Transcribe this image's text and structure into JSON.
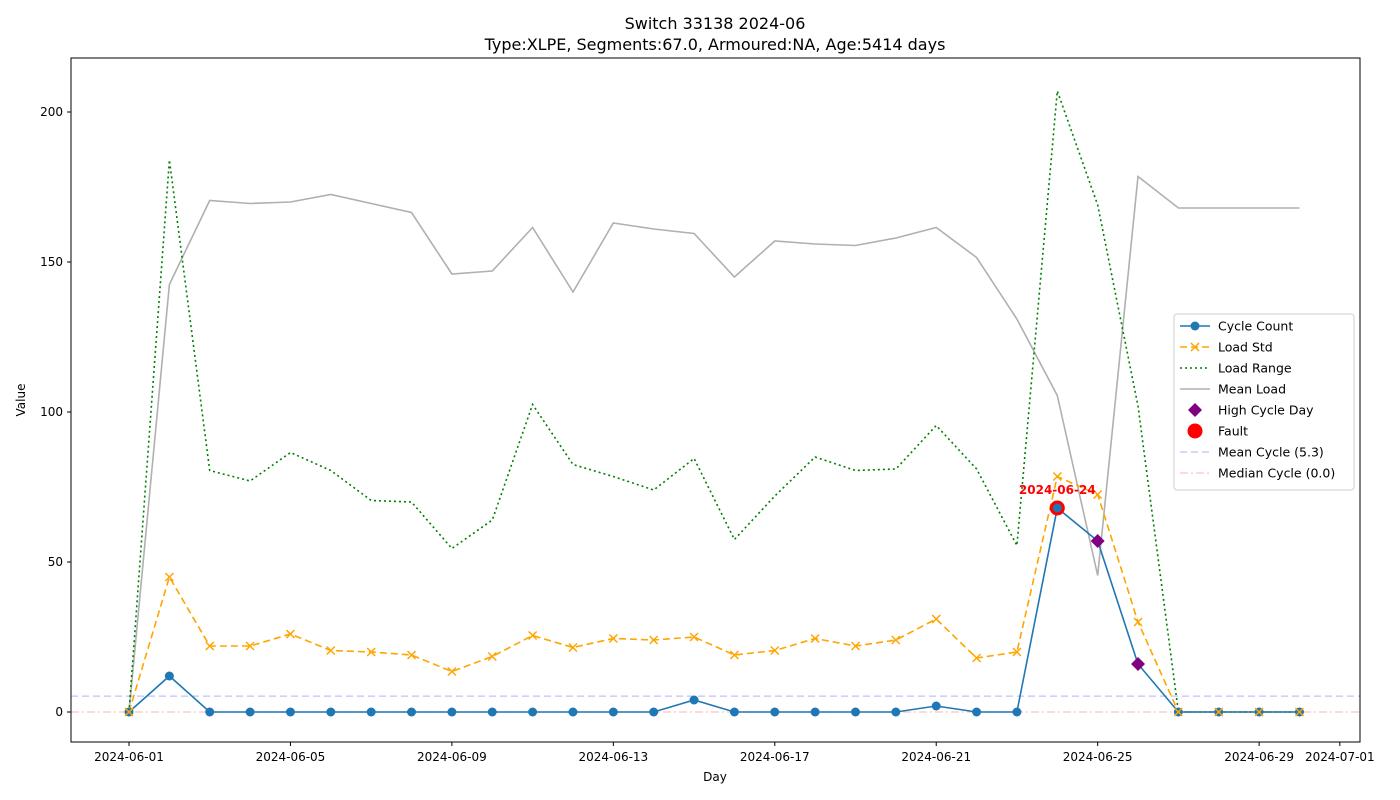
{
  "chart_data": {
    "type": "line",
    "title": "Switch 33138 2024-06",
    "subtitle": "Type:XLPE, Segments:67.0, Armoured:NA, Age:5414 days",
    "xlabel": "Day",
    "ylabel": "Value",
    "x_ticks": [
      "2024-06-01",
      "2024-06-05",
      "2024-06-09",
      "2024-06-13",
      "2024-06-17",
      "2024-06-21",
      "2024-06-25",
      "2024-06-29",
      "2024-07-01"
    ],
    "y_ticks": [
      0,
      50,
      100,
      150,
      200
    ],
    "ylim": [
      -10,
      218
    ],
    "xlim": [
      "2024-05-30T13:30",
      "2024-07-01T12:00"
    ],
    "x": [
      "2024-06-01",
      "2024-06-02",
      "2024-06-03",
      "2024-06-04",
      "2024-06-05",
      "2024-06-06",
      "2024-06-07",
      "2024-06-08",
      "2024-06-09",
      "2024-06-10",
      "2024-06-11",
      "2024-06-12",
      "2024-06-13",
      "2024-06-14",
      "2024-06-15",
      "2024-06-16",
      "2024-06-17",
      "2024-06-18",
      "2024-06-19",
      "2024-06-20",
      "2024-06-21",
      "2024-06-22",
      "2024-06-23",
      "2024-06-24",
      "2024-06-25",
      "2024-06-26",
      "2024-06-27",
      "2024-06-28",
      "2024-06-29",
      "2024-06-30"
    ],
    "series": [
      {
        "name": "Cycle Count",
        "color": "#1f77b4",
        "style": "solid",
        "marker": "circle",
        "values": [
          0,
          12,
          0,
          0,
          0,
          0,
          0,
          0,
          0,
          0,
          0,
          0,
          0,
          0,
          4,
          0,
          0,
          0,
          0,
          0,
          2,
          0,
          0,
          68,
          57,
          16,
          0,
          0,
          0,
          0
        ]
      },
      {
        "name": "Load Std",
        "color": "#ffa500",
        "style": "dashed",
        "marker": "x",
        "values": [
          0,
          45,
          22,
          22,
          26,
          20.5,
          20,
          19,
          13.5,
          18.5,
          25.5,
          21.5,
          24.5,
          24,
          25,
          19,
          20.5,
          24.5,
          22,
          24,
          31,
          18,
          20,
          78.5,
          72.5,
          30,
          0,
          0,
          0,
          0
        ]
      },
      {
        "name": "Load Range",
        "color": "#008000",
        "style": "dotted",
        "marker": "none",
        "values": [
          0,
          184,
          80.5,
          77,
          86.5,
          80.5,
          70.5,
          70,
          54.5,
          64,
          102.5,
          82.5,
          78.5,
          74,
          84.5,
          57.5,
          72,
          85,
          80.5,
          81,
          95.5,
          81,
          55.5,
          207,
          169,
          102,
          0,
          0,
          0,
          0
        ]
      },
      {
        "name": "Mean Load",
        "color": "#b0b0b0",
        "style": "solid",
        "marker": "none",
        "values": [
          0,
          142.5,
          170.5,
          169.5,
          170,
          172.5,
          169.5,
          166.5,
          146,
          147,
          161.5,
          140,
          163,
          161,
          159.5,
          145,
          157,
          156,
          155.5,
          158,
          161.5,
          151.5,
          131,
          105.5,
          45.5,
          178.5,
          168,
          168,
          168,
          168
        ]
      }
    ],
    "high_cycle_days": [
      {
        "x": "2024-06-25",
        "y": 57
      },
      {
        "x": "2024-06-26",
        "y": 16
      }
    ],
    "faults": [
      {
        "x": "2024-06-24",
        "y": 68,
        "label": "2024-06-24"
      }
    ],
    "reference_lines": [
      {
        "name": "Mean Cycle (5.3)",
        "y": 5.3,
        "color": "#9999ff",
        "style": "dashed"
      },
      {
        "name": "Median Cycle (0.0)",
        "y": 0,
        "color": "#ff9999",
        "style": "dashdot"
      }
    ],
    "legend": {
      "placement": "center-right",
      "entries": [
        {
          "label": "Cycle Count",
          "color": "#1f77b4",
          "kind": "line-circle"
        },
        {
          "label": "Load Std",
          "color": "#ffa500",
          "kind": "dashed-x"
        },
        {
          "label": "Load Range",
          "color": "#008000",
          "kind": "dotted"
        },
        {
          "label": "Mean Load",
          "color": "#b0b0b0",
          "kind": "line"
        },
        {
          "label": "High Cycle Day",
          "color": "#800080",
          "kind": "diamond"
        },
        {
          "label": "Fault",
          "color": "#ff0000",
          "kind": "big-circle"
        },
        {
          "label": "Mean Cycle (5.3)",
          "color": "#9999ff",
          "kind": "ref-dashed"
        },
        {
          "label": "Median Cycle (0.0)",
          "color": "#ff9999",
          "kind": "ref-dashdot"
        }
      ]
    },
    "grid": false
  }
}
